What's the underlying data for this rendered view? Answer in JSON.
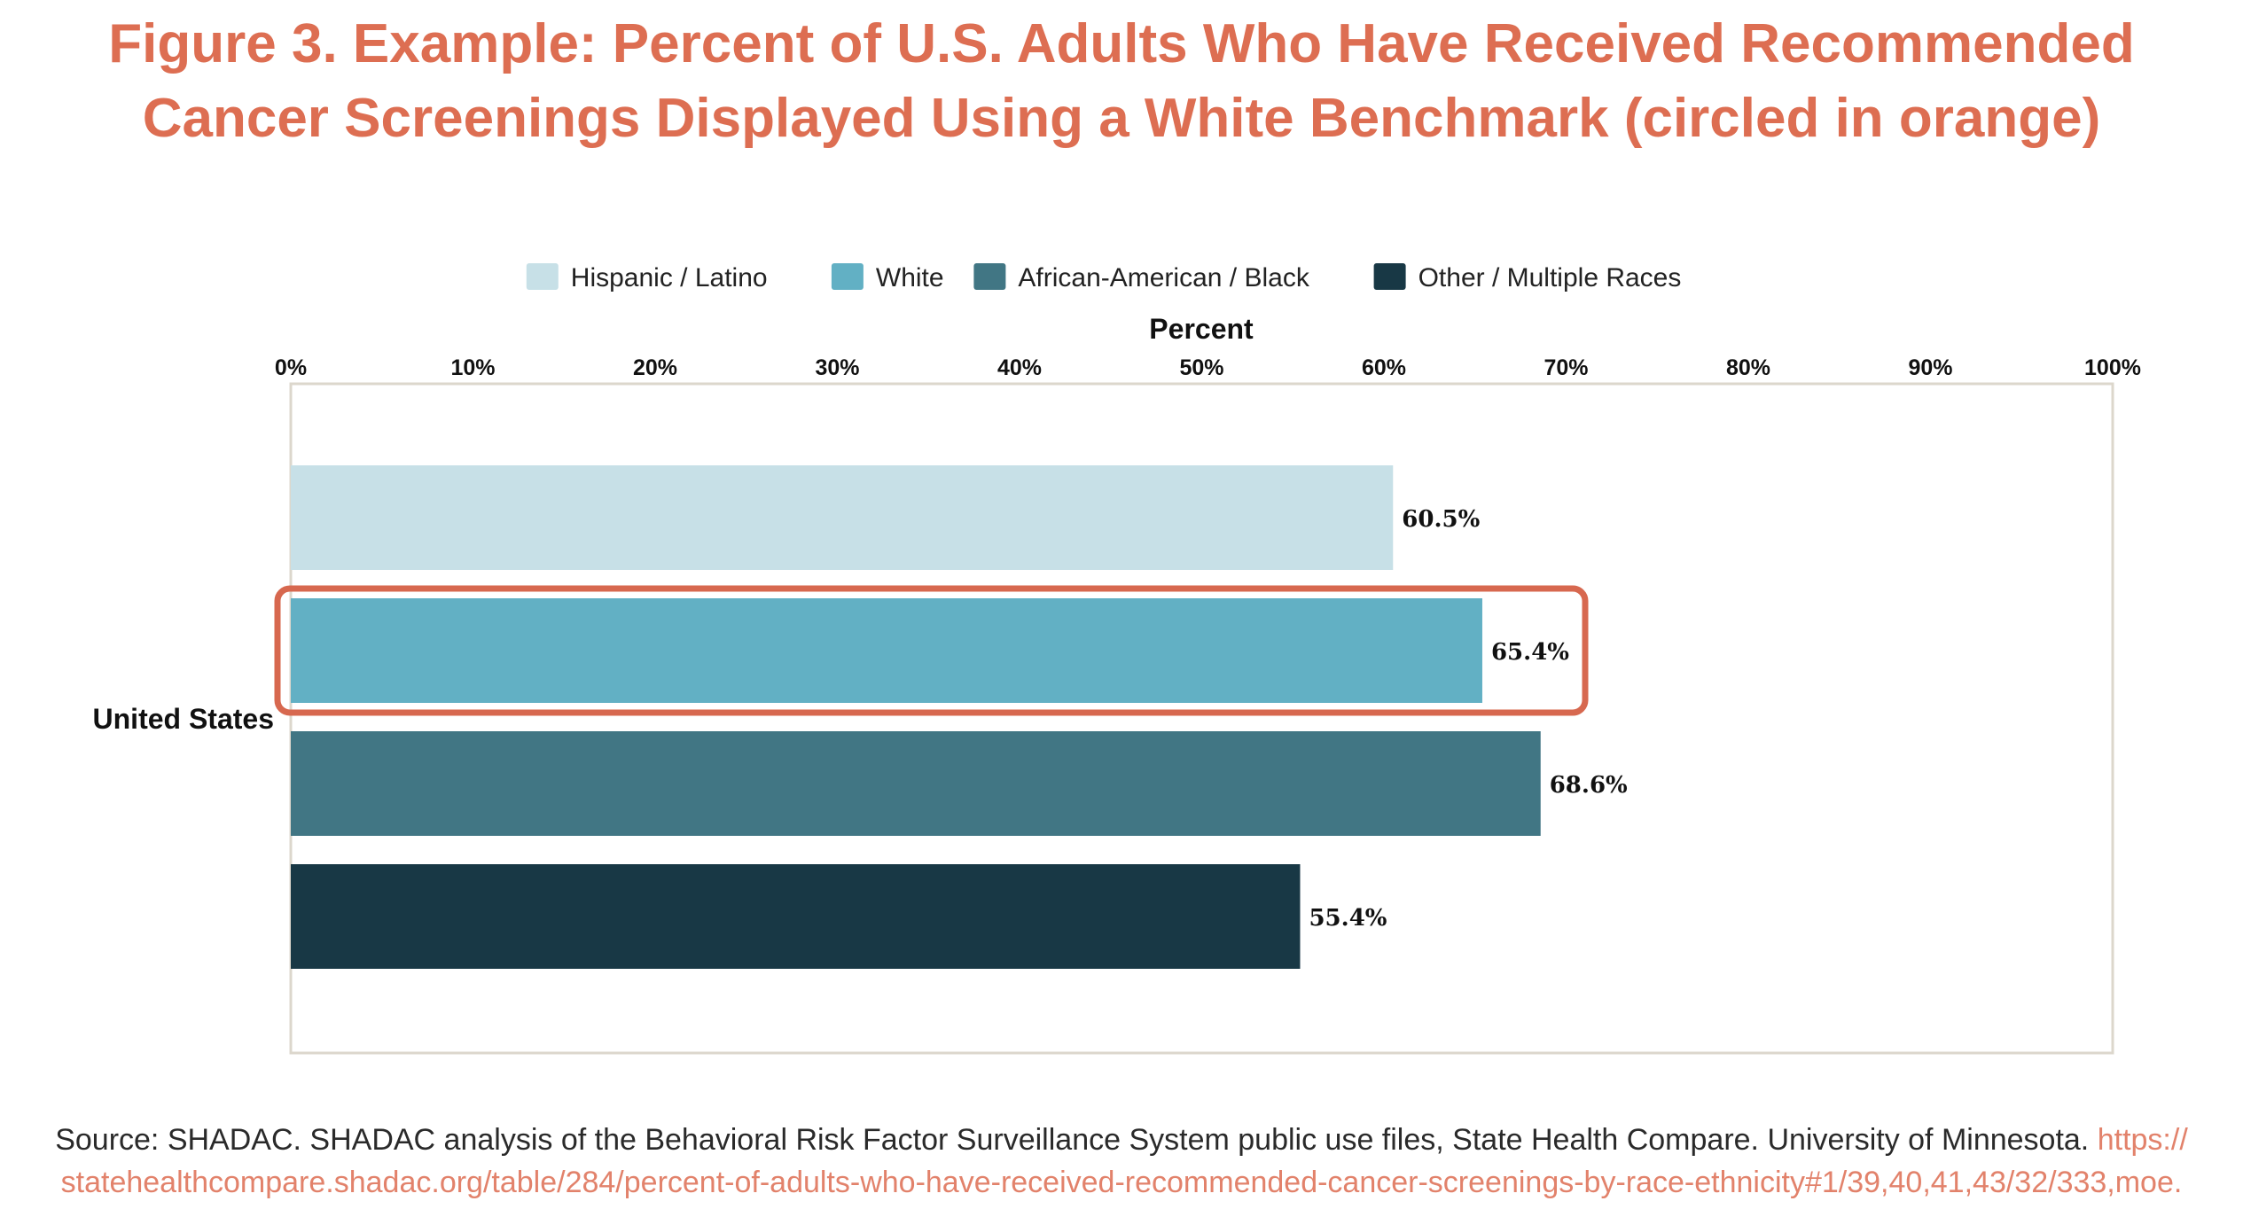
{
  "figure": {
    "title_line1": "Figure 3. Example: Percent of U.S. Adults Who Have Received Recommended",
    "title_line2": "Cancer Screenings Displayed Using a White Benchmark (circled in orange)",
    "title_color": "#dd6e52",
    "highlight_color": "#d7684f"
  },
  "chart_data": {
    "type": "bar",
    "orientation": "horizontal",
    "xlabel": "Percent",
    "xlim": [
      0,
      100
    ],
    "xticks": [
      "0%",
      "10%",
      "20%",
      "30%",
      "40%",
      "50%",
      "60%",
      "70%",
      "80%",
      "90%",
      "100%"
    ],
    "categories": [
      "United States"
    ],
    "series": [
      {
        "name": "Hispanic / Latino",
        "values": [
          60.5
        ],
        "label": "60.5%",
        "color": "#c7e0e7"
      },
      {
        "name": "White",
        "values": [
          65.4
        ],
        "label": "65.4%",
        "color": "#62b0c4",
        "highlighted": true
      },
      {
        "name": "African-American / Black",
        "values": [
          68.6
        ],
        "label": "68.6%",
        "color": "#417684"
      },
      {
        "name": "Other / Multiple Races",
        "values": [
          55.4
        ],
        "label": "55.4%",
        "color": "#183845"
      }
    ],
    "legend_position": "top",
    "grid": false
  },
  "source": {
    "text": "Source: SHADAC. SHADAC analysis of the Behavioral Risk Factor Surveillance System public use files, State Health Compare. University of Minnesota.",
    "url_part1": "https://",
    "url_part2": "statehealthcompare.shadac.org/table/284/percent-of-adults-who-have-received-recommended-cancer-screenings-by-race-ethnicity#1/39,40,41,43/32/333,moe."
  }
}
